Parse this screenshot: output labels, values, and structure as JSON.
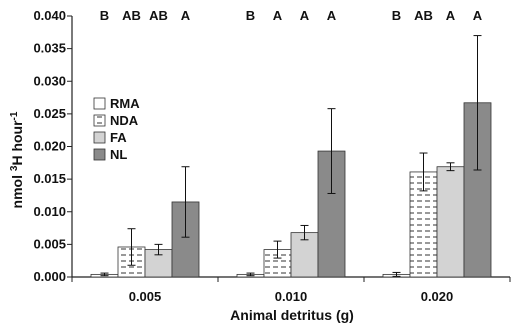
{
  "chart_data": {
    "type": "bar",
    "xlabel": "Animal detritus (g)",
    "ylabel_main": "nmol ",
    "ylabel_sup": "3",
    "ylabel_mid": "H hour",
    "ylabel_sup2": "-1",
    "ylim": [
      0,
      0.04
    ],
    "yticks": [
      "0.000",
      "0.005",
      "0.010",
      "0.015",
      "0.020",
      "0.025",
      "0.030",
      "0.035",
      "0.040"
    ],
    "ytick_values": [
      0,
      0.005,
      0.01,
      0.015,
      0.02,
      0.025,
      0.03,
      0.035,
      0.04
    ],
    "categories": [
      "0.005",
      "0.010",
      "0.020"
    ],
    "series": [
      {
        "name": "RMA",
        "values": [
          0.0004,
          0.0004,
          0.0004
        ],
        "errors": [
          0.0002,
          0.0002,
          0.0003
        ]
      },
      {
        "name": "NDA",
        "values": [
          0.0046,
          0.0042,
          0.0161
        ],
        "errors": [
          0.0028,
          0.0013,
          0.0029
        ]
      },
      {
        "name": "FA",
        "values": [
          0.0042,
          0.0068,
          0.0169
        ],
        "errors": [
          0.0008,
          0.0011,
          0.0006
        ]
      },
      {
        "name": "NL",
        "values": [
          0.0115,
          0.0193,
          0.0267
        ],
        "errors": [
          0.0054,
          0.0065,
          0.0103
        ]
      }
    ],
    "significance": [
      [
        "B",
        "AB",
        "AB",
        "A"
      ],
      [
        "B",
        "A",
        "A",
        "A"
      ],
      [
        "B",
        "AB",
        "A",
        "A"
      ]
    ],
    "legend_position": "center-left",
    "colors": {
      "RMA": "#ffffff",
      "NDA": "#ffffff",
      "FA": "#d3d3d3",
      "NL": "#8a8a8a"
    }
  }
}
